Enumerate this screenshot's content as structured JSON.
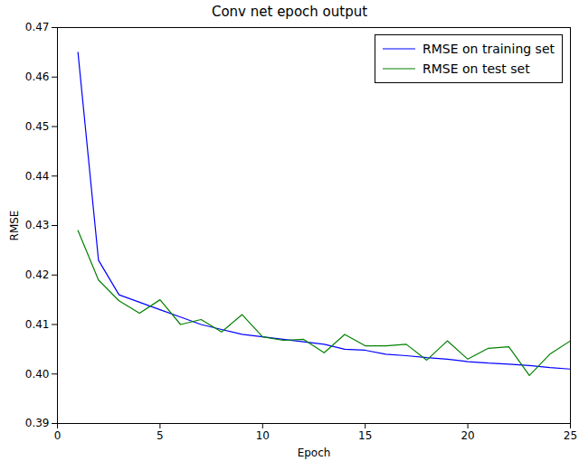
{
  "chart_data": {
    "type": "line",
    "title": "Conv net epoch output",
    "x_label": "Epoch",
    "y_label": "RMSE",
    "x": [
      1,
      2,
      3,
      4,
      5,
      6,
      7,
      8,
      9,
      10,
      11,
      12,
      13,
      14,
      15,
      16,
      17,
      18,
      19,
      20,
      21,
      22,
      23,
      24,
      25
    ],
    "series": [
      {
        "name": "RMSE on training set",
        "color": "#0000ff",
        "line_style": "solid",
        "marker": "none",
        "values": [
          0.465,
          0.423,
          0.416,
          0.4145,
          0.413,
          0.4115,
          0.41,
          0.409,
          0.408,
          0.4075,
          0.407,
          0.4065,
          0.406,
          0.405,
          0.4048,
          0.404,
          0.4037,
          0.4033,
          0.403,
          0.4025,
          0.4022,
          0.402,
          0.4017,
          0.4013,
          0.401
        ]
      },
      {
        "name": "RMSE on test set",
        "color": "#008000",
        "line_style": "solid",
        "marker": "none",
        "values": [
          0.429,
          0.419,
          0.4148,
          0.4123,
          0.415,
          0.41,
          0.411,
          0.4085,
          0.412,
          0.4075,
          0.4068,
          0.407,
          0.4043,
          0.408,
          0.4057,
          0.4057,
          0.406,
          0.4028,
          0.4067,
          0.403,
          0.4052,
          0.4055,
          0.3997,
          0.404,
          0.4067
        ]
      }
    ],
    "xlim": [
      0,
      25
    ],
    "xticks": [
      0,
      5,
      10,
      15,
      20,
      25
    ],
    "ylim": [
      0.39,
      0.47
    ],
    "yticks": [
      0.39,
      {
        "value": 0.4,
        "label": "0.40"
      },
      0.41,
      0.42,
      0.43,
      0.44,
      0.45,
      0.46,
      0.47
    ],
    "grid": false,
    "legend": "upper right"
  }
}
